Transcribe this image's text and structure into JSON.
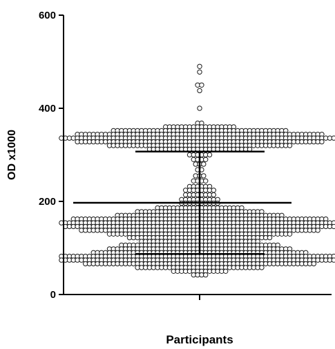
{
  "chart_data": {
    "type": "scatter",
    "subtype": "dot-plot",
    "title": "",
    "xlabel": "Participants",
    "ylabel": "OD x1000",
    "ylim": [
      0,
      600
    ],
    "yticks": [
      0,
      200,
      400,
      600
    ],
    "categories": [
      "Participants"
    ],
    "grid": false,
    "legend": "none",
    "colors": {
      "axis": "#000000",
      "marker_stroke": "#1a1a1a",
      "marker_fill": "#ffffff",
      "summary_line": "#000000"
    },
    "summary": {
      "mean": 197,
      "sd_upper": 307,
      "sd_lower": 87
    },
    "bins": [
      {
        "y": 490,
        "n": 1
      },
      {
        "y": 478,
        "n": 1
      },
      {
        "y": 450,
        "n": 2
      },
      {
        "y": 438,
        "n": 1
      },
      {
        "y": 400,
        "n": 1
      },
      {
        "y": 368,
        "n": 2
      },
      {
        "y": 360,
        "n": 18
      },
      {
        "y": 352,
        "n": 44
      },
      {
        "y": 344,
        "n": 62
      },
      {
        "y": 336,
        "n": 70
      },
      {
        "y": 328,
        "n": 62
      },
      {
        "y": 320,
        "n": 46
      },
      {
        "y": 312,
        "n": 26
      },
      {
        "y": 300,
        "n": 6
      },
      {
        "y": 290,
        "n": 4
      },
      {
        "y": 280,
        "n": 3
      },
      {
        "y": 268,
        "n": 2
      },
      {
        "y": 255,
        "n": 3
      },
      {
        "y": 244,
        "n": 4
      },
      {
        "y": 232,
        "n": 6
      },
      {
        "y": 224,
        "n": 8
      },
      {
        "y": 214,
        "n": 8
      },
      {
        "y": 204,
        "n": 10
      },
      {
        "y": 196,
        "n": 10
      },
      {
        "y": 186,
        "n": 22
      },
      {
        "y": 178,
        "n": 32
      },
      {
        "y": 170,
        "n": 42
      },
      {
        "y": 162,
        "n": 64
      },
      {
        "y": 154,
        "n": 70
      },
      {
        "y": 146,
        "n": 68
      },
      {
        "y": 138,
        "n": 60
      },
      {
        "y": 130,
        "n": 46
      },
      {
        "y": 122,
        "n": 36
      },
      {
        "y": 114,
        "n": 30
      },
      {
        "y": 106,
        "n": 40
      },
      {
        "y": 98,
        "n": 46
      },
      {
        "y": 90,
        "n": 54
      },
      {
        "y": 82,
        "n": 70
      },
      {
        "y": 74,
        "n": 70
      },
      {
        "y": 66,
        "n": 58
      },
      {
        "y": 58,
        "n": 32
      },
      {
        "y": 50,
        "n": 14
      },
      {
        "y": 42,
        "n": 4
      }
    ]
  }
}
